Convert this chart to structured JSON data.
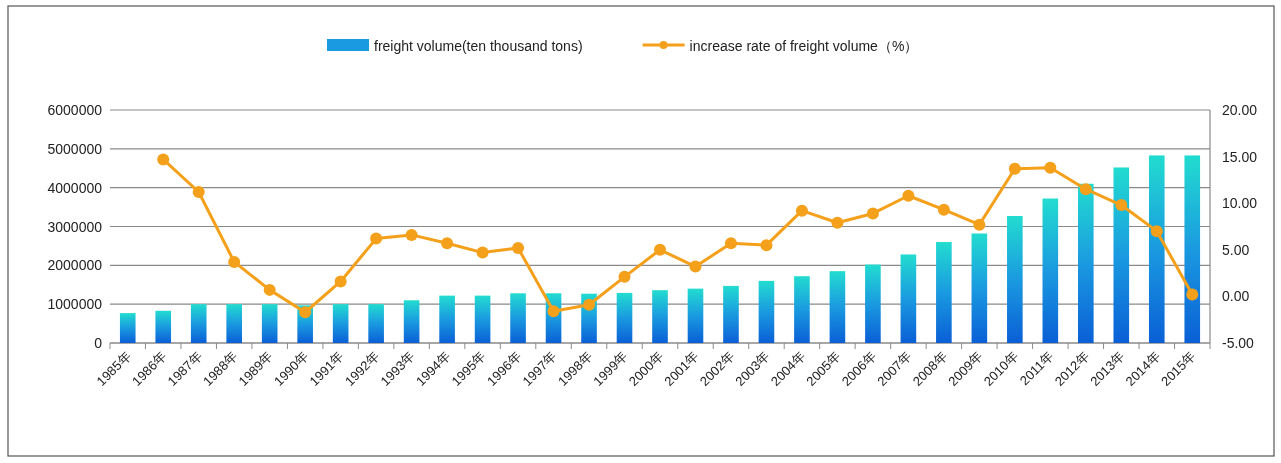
{
  "chart_data": {
    "type": "bar",
    "categories": [
      "1985年",
      "1986年",
      "1987年",
      "1988年",
      "1989年",
      "1990年",
      "1991年",
      "1992年",
      "1993年",
      "1994年",
      "1995年",
      "1996年",
      "1997年",
      "1998年",
      "1999年",
      "2000年",
      "2001年",
      "2002年",
      "2003年",
      "2004年",
      "2005年",
      "2006年",
      "2007年",
      "2008年",
      "2009年",
      "2010年",
      "2011年",
      "2012年",
      "2013年",
      "2014年",
      "2015年"
    ],
    "series": [
      {
        "name": "freight volume(ten thousand tons)",
        "color": "#1a9ae0",
        "values": [
          770000,
          830000,
          1000000,
          1000000,
          1000000,
          970000,
          1000000,
          1000000,
          1100000,
          1220000,
          1220000,
          1280000,
          1280000,
          1270000,
          1290000,
          1360000,
          1400000,
          1470000,
          1600000,
          1720000,
          1850000,
          2020000,
          2280000,
          2600000,
          2820000,
          3270000,
          3720000,
          4100000,
          4520000,
          4830000,
          4830000
        ]
      },
      {
        "name": "increase rate of freight volume（%）",
        "type": "line",
        "axis": "y2",
        "color": "#f5a01a",
        "values": [
          null,
          14.7,
          11.2,
          3.7,
          0.7,
          -1.7,
          1.6,
          6.2,
          6.6,
          5.7,
          4.7,
          5.2,
          -1.6,
          -0.9,
          2.1,
          5.0,
          3.2,
          5.7,
          5.5,
          9.2,
          7.9,
          8.9,
          10.8,
          9.3,
          7.7,
          13.7,
          13.8,
          11.5,
          9.8,
          7.0,
          0.2
        ]
      }
    ],
    "ylim": [
      0,
      6000000
    ],
    "yticks": [
      0,
      1000000,
      2000000,
      3000000,
      4000000,
      5000000,
      6000000
    ],
    "y2lim": [
      -5,
      20
    ],
    "y2ticks": [
      {
        "value": -5,
        "label": "-5.00"
      },
      {
        "value": 0,
        "label": "0.00"
      },
      {
        "value": 5,
        "label": "5.00"
      },
      {
        "value": 10,
        "label": "10.00"
      },
      {
        "value": 15,
        "label": "15.00"
      },
      {
        "value": 20,
        "label": "20.00"
      }
    ],
    "grid": "y",
    "legend": "top",
    "marker": "circle"
  }
}
